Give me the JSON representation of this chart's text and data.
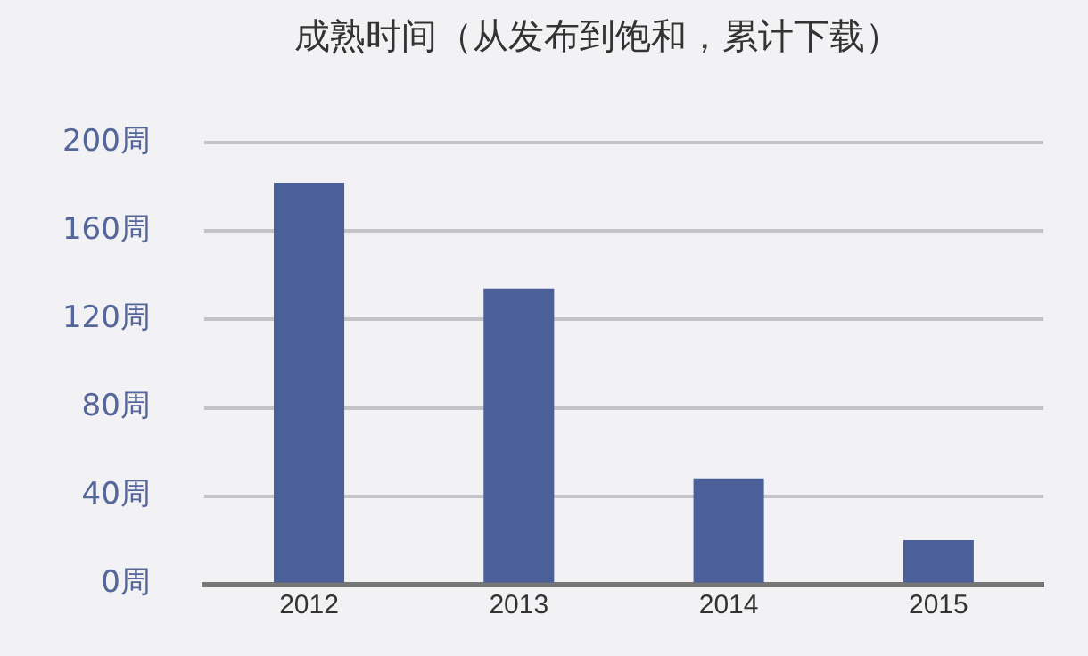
{
  "chart_data": {
    "type": "bar",
    "title": "成熟时间（从发布到饱和，累计下载）",
    "categories": [
      "2012",
      "2013",
      "2014",
      "2015"
    ],
    "values": [
      182,
      134,
      48,
      20
    ],
    "color": "#4b5f98",
    "ylim": [
      0,
      200
    ],
    "yticks": [
      {
        "value": 0,
        "label": "0周"
      },
      {
        "value": 40,
        "label": "40周"
      },
      {
        "value": 80,
        "label": "80周"
      },
      {
        "value": 120,
        "label": "120周"
      },
      {
        "value": 160,
        "label": "160周"
      },
      {
        "value": 200,
        "label": "200周"
      }
    ],
    "grid": "y",
    "legend": false
  }
}
